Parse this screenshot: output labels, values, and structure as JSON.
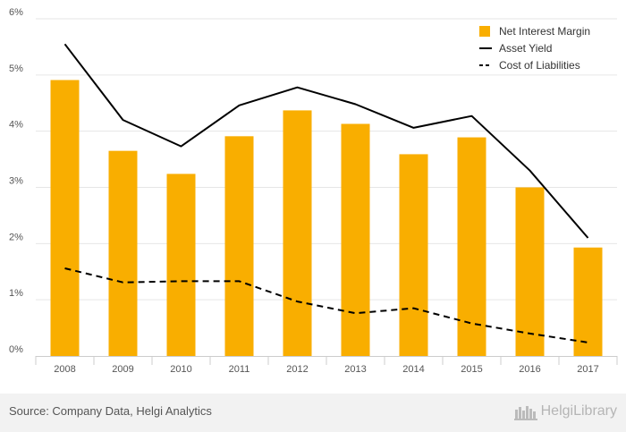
{
  "chart_data": {
    "type": "bar",
    "categories": [
      "2008",
      "2009",
      "2010",
      "2011",
      "2012",
      "2013",
      "2014",
      "2015",
      "2016",
      "2017"
    ],
    "series": [
      {
        "name": "Net Interest Margin",
        "kind": "bar",
        "color": "#f9ae00",
        "values": [
          4.91,
          3.65,
          3.24,
          3.91,
          4.37,
          4.13,
          3.59,
          3.89,
          3.0,
          1.93
        ]
      },
      {
        "name": "Asset Yield",
        "kind": "line",
        "style": "solid",
        "color": "#000000",
        "values": [
          5.55,
          4.2,
          3.73,
          4.46,
          4.78,
          4.48,
          4.06,
          4.27,
          3.3,
          2.1
        ]
      },
      {
        "name": "Cost of Liabilities",
        "kind": "line",
        "style": "dashed",
        "color": "#000000",
        "values": [
          1.56,
          1.31,
          1.33,
          1.33,
          0.97,
          0.76,
          0.85,
          0.58,
          0.4,
          0.24
        ]
      }
    ],
    "yticks": [
      "0%",
      "1%",
      "2%",
      "3%",
      "4%",
      "5%",
      "6%"
    ],
    "ylim": [
      0,
      6
    ],
    "grid": true,
    "legend_position": "top-right"
  },
  "footer": {
    "source": "Source: Company Data, Helgi Analytics",
    "brand": "HelgiLibrary"
  }
}
